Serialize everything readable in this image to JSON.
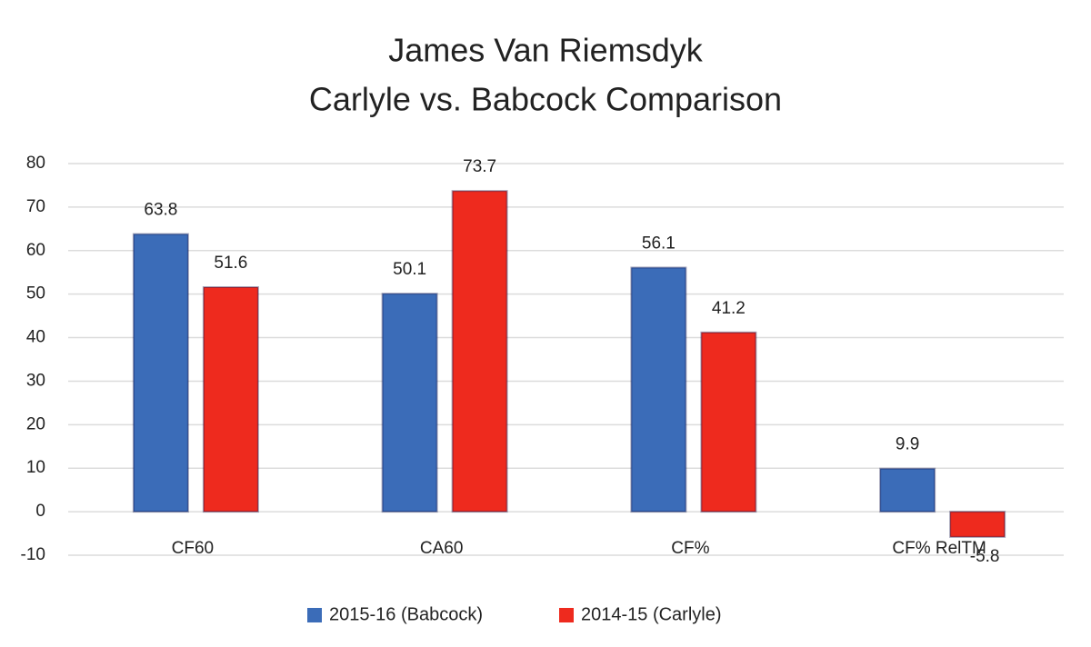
{
  "chart_data": {
    "type": "bar",
    "title": "James Van Riemsdyk",
    "subtitle": "Carlyle vs. Babcock Comparison",
    "categories": [
      "CF60",
      "CA60",
      "CF%",
      "CF% RelTM"
    ],
    "series": [
      {
        "name": "2015-16 (Babcock)",
        "color": "#3b6cb8",
        "values": [
          63.8,
          50.1,
          56.1,
          9.9
        ]
      },
      {
        "name": "2014-15 (Carlyle)",
        "color": "#ee2a1e",
        "values": [
          51.6,
          73.7,
          41.2,
          -5.8
        ]
      }
    ],
    "ylim": [
      -10,
      80
    ],
    "yticks": [
      -10,
      0,
      10,
      20,
      30,
      40,
      50,
      60,
      70,
      80
    ],
    "grid": true,
    "legend": "bottom"
  }
}
